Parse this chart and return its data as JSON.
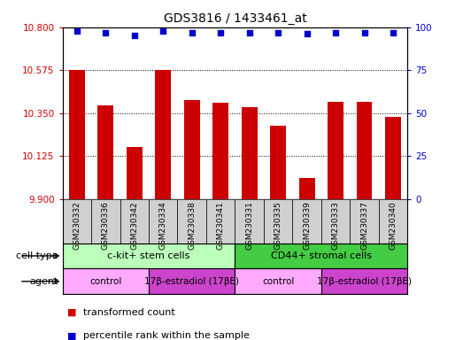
{
  "title": "GDS3816 / 1433461_at",
  "samples": [
    "GSM230332",
    "GSM230336",
    "GSM230342",
    "GSM230334",
    "GSM230338",
    "GSM230341",
    "GSM230331",
    "GSM230335",
    "GSM230339",
    "GSM230333",
    "GSM230337",
    "GSM230340"
  ],
  "bar_values": [
    10.575,
    10.39,
    10.17,
    10.575,
    10.42,
    10.405,
    10.38,
    10.285,
    10.01,
    10.41,
    10.41,
    10.33
  ],
  "percentile_values": [
    98,
    97,
    95,
    98,
    97,
    97,
    97,
    97,
    96,
    97,
    97,
    97
  ],
  "ylim_left": [
    9.9,
    10.8
  ],
  "ylim_right": [
    0,
    100
  ],
  "yticks_left": [
    9.9,
    10.125,
    10.35,
    10.575,
    10.8
  ],
  "yticks_right": [
    0,
    25,
    50,
    75,
    100
  ],
  "bar_color": "#cc0000",
  "dot_color": "#0000cc",
  "sample_bg_color": "#d0d0d0",
  "cell_type_groups": [
    {
      "label": "c-kit+ stem cells",
      "start": 0,
      "end": 6,
      "color": "#bbffbb"
    },
    {
      "label": "CD44+ stromal cells",
      "start": 6,
      "end": 12,
      "color": "#44cc44"
    }
  ],
  "agent_groups": [
    {
      "label": "control",
      "start": 0,
      "end": 3,
      "color": "#ffaaff"
    },
    {
      "label": "17β-estradiol (17βE)",
      "start": 3,
      "end": 6,
      "color": "#cc44cc"
    },
    {
      "label": "control",
      "start": 6,
      "end": 9,
      "color": "#ffaaff"
    },
    {
      "label": "17β-estradiol (17βE)",
      "start": 9,
      "end": 12,
      "color": "#cc44cc"
    }
  ],
  "legend_items": [
    {
      "label": "transformed count",
      "color": "#cc0000"
    },
    {
      "label": "percentile rank within the sample",
      "color": "#0000cc"
    }
  ],
  "cell_type_label": "cell type",
  "agent_label": "agent",
  "bg_color": "#ffffff",
  "ylabel_left_color": "#cc0000",
  "ylabel_right_color": "#0000cc"
}
